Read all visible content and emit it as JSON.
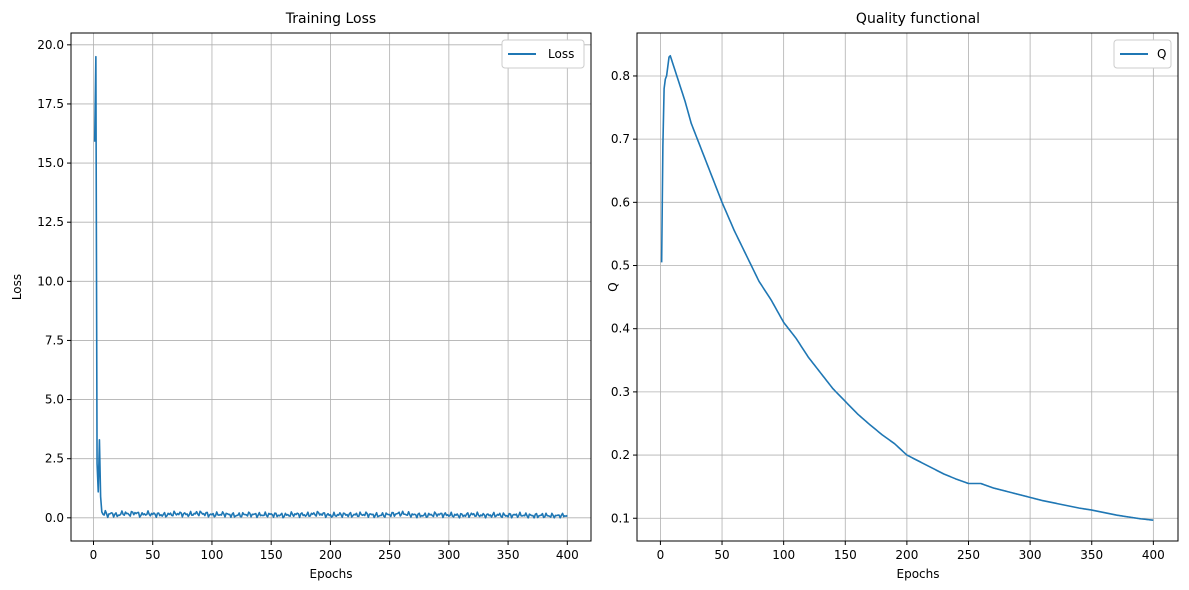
{
  "figure": {
    "background": "#ffffff"
  },
  "chart_data": [
    {
      "type": "line",
      "title": "Training Loss",
      "xlabel": "Epochs",
      "ylabel": "Loss",
      "xlim": [
        -19,
        420
      ],
      "ylim": [
        -0.98,
        20.5
      ],
      "xticks": [
        0,
        50,
        100,
        150,
        200,
        250,
        300,
        350,
        400
      ],
      "xtick_labels": [
        "0",
        "50",
        "100",
        "150",
        "200",
        "250",
        "300",
        "350",
        "400"
      ],
      "yticks": [
        0.0,
        2.5,
        5.0,
        7.5,
        10.0,
        12.5,
        15.0,
        17.5,
        20.0
      ],
      "ytick_labels": [
        "0.0",
        "2.5",
        "5.0",
        "7.5",
        "10.0",
        "12.5",
        "15.0",
        "17.5",
        "20.0"
      ],
      "grid": true,
      "legend_position": "upper right",
      "series": [
        {
          "name": "Loss",
          "color": "#1f77b4",
          "noise_amplitude": 0.12,
          "x": [
            1,
            2,
            3,
            4,
            5,
            6,
            7,
            8,
            10,
            12,
            15,
            20,
            25,
            30,
            35,
            40,
            45,
            50,
            60,
            70,
            80,
            90,
            100,
            110,
            120,
            130,
            140,
            150,
            160,
            170,
            180,
            190,
            200,
            210,
            220,
            230,
            240,
            250,
            260,
            270,
            280,
            290,
            300,
            310,
            320,
            330,
            340,
            350,
            360,
            370,
            380,
            390,
            400
          ],
          "y": [
            15.9,
            19.5,
            2.3,
            1.1,
            3.3,
            0.9,
            0.25,
            0.15,
            0.2,
            0.12,
            0.18,
            0.1,
            0.2,
            0.15,
            0.22,
            0.12,
            0.18,
            0.15,
            0.12,
            0.18,
            0.14,
            0.2,
            0.12,
            0.16,
            0.1,
            0.15,
            0.12,
            0.14,
            0.1,
            0.15,
            0.12,
            0.18,
            0.1,
            0.14,
            0.12,
            0.15,
            0.1,
            0.14,
            0.18,
            0.12,
            0.1,
            0.15,
            0.12,
            0.1,
            0.14,
            0.1,
            0.12,
            0.1,
            0.12,
            0.09,
            0.1,
            0.08,
            0.1
          ]
        }
      ]
    },
    {
      "type": "line",
      "title": "Quality functional",
      "xlabel": "Epochs",
      "ylabel": "Q",
      "xlim": [
        -19,
        420
      ],
      "ylim": [
        0.064,
        0.868
      ],
      "xticks": [
        0,
        50,
        100,
        150,
        200,
        250,
        300,
        350,
        400
      ],
      "xtick_labels": [
        "0",
        "50",
        "100",
        "150",
        "200",
        "250",
        "300",
        "350",
        "400"
      ],
      "yticks": [
        0.1,
        0.2,
        0.3,
        0.4,
        0.5,
        0.6,
        0.7,
        0.8
      ],
      "ytick_labels": [
        "0.1",
        "0.2",
        "0.3",
        "0.4",
        "0.5",
        "0.6",
        "0.7",
        "0.8"
      ],
      "grid": true,
      "legend_position": "upper right",
      "series": [
        {
          "name": "Q",
          "color": "#1f77b4",
          "x": [
            1,
            2,
            3,
            4,
            5,
            6,
            7,
            8,
            10,
            15,
            20,
            25,
            30,
            40,
            50,
            60,
            70,
            80,
            90,
            100,
            110,
            120,
            130,
            140,
            150,
            160,
            170,
            180,
            190,
            200,
            210,
            220,
            230,
            240,
            250,
            260,
            270,
            280,
            290,
            300,
            310,
            320,
            330,
            340,
            350,
            360,
            370,
            380,
            390,
            400
          ],
          "y": [
            0.505,
            0.69,
            0.78,
            0.795,
            0.8,
            0.815,
            0.83,
            0.832,
            0.82,
            0.79,
            0.76,
            0.725,
            0.7,
            0.65,
            0.6,
            0.555,
            0.515,
            0.475,
            0.445,
            0.41,
            0.385,
            0.355,
            0.33,
            0.305,
            0.285,
            0.265,
            0.248,
            0.232,
            0.218,
            0.2,
            0.19,
            0.18,
            0.17,
            0.162,
            0.155,
            0.155,
            0.148,
            0.143,
            0.138,
            0.133,
            0.128,
            0.124,
            0.12,
            0.116,
            0.113,
            0.109,
            0.105,
            0.102,
            0.099,
            0.097
          ]
        }
      ]
    }
  ]
}
